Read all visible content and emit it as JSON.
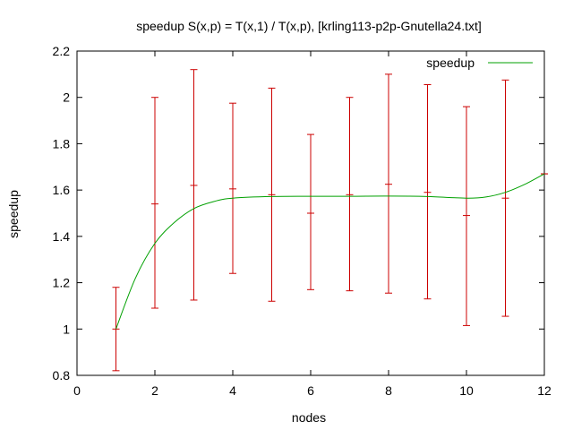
{
  "chart_data": {
    "type": "line",
    "title": "speedup S(x,p) = T(x,1) / T(x,p), [krling113-p2p-Gnutella24.txt]",
    "xlabel": "nodes",
    "ylabel": "speedup",
    "xlim": [
      0,
      12
    ],
    "ylim": [
      0.8,
      2.2
    ],
    "x_ticks": [
      0,
      2,
      4,
      6,
      8,
      10,
      12
    ],
    "y_ticks": [
      0.8,
      1,
      1.2,
      1.4,
      1.6,
      1.8,
      2,
      2.2
    ],
    "x_tick_labels": [
      "0",
      "2",
      "4",
      "6",
      "8",
      "10",
      "12"
    ],
    "y_tick_labels": [
      "0.8",
      "1",
      "1.2",
      "1.4",
      "1.6",
      "1.8",
      "2",
      "2.2"
    ],
    "grid": false,
    "legend_position": "top-right",
    "series": [
      {
        "name": "speedup",
        "kind": "smooth-line",
        "color": "#00a000",
        "x": [
          1,
          1.5,
          2,
          2.5,
          3,
          3.5,
          4,
          5,
          6,
          7,
          8,
          9,
          10,
          10.5,
          11,
          11.5,
          12
        ],
        "y": [
          1.0,
          1.22,
          1.37,
          1.46,
          1.52,
          1.55,
          1.565,
          1.572,
          1.573,
          1.573,
          1.574,
          1.572,
          1.565,
          1.57,
          1.59,
          1.625,
          1.67
        ]
      },
      {
        "name": "",
        "kind": "errorbars",
        "color": "#cc0000",
        "x": [
          1,
          2,
          3,
          4,
          5,
          6,
          7,
          8,
          9,
          10,
          11,
          12
        ],
        "y": [
          1.0,
          1.54,
          1.62,
          1.605,
          1.58,
          1.5,
          1.58,
          1.625,
          1.59,
          1.49,
          1.565,
          1.67
        ],
        "ylow": [
          0.82,
          1.09,
          1.125,
          1.24,
          1.12,
          1.17,
          1.165,
          1.155,
          1.13,
          1.015,
          1.055,
          1.67
        ],
        "yhigh": [
          1.18,
          2.0,
          2.12,
          1.975,
          2.04,
          1.84,
          2.0,
          2.1,
          2.055,
          1.96,
          2.075,
          1.67
        ]
      }
    ]
  }
}
